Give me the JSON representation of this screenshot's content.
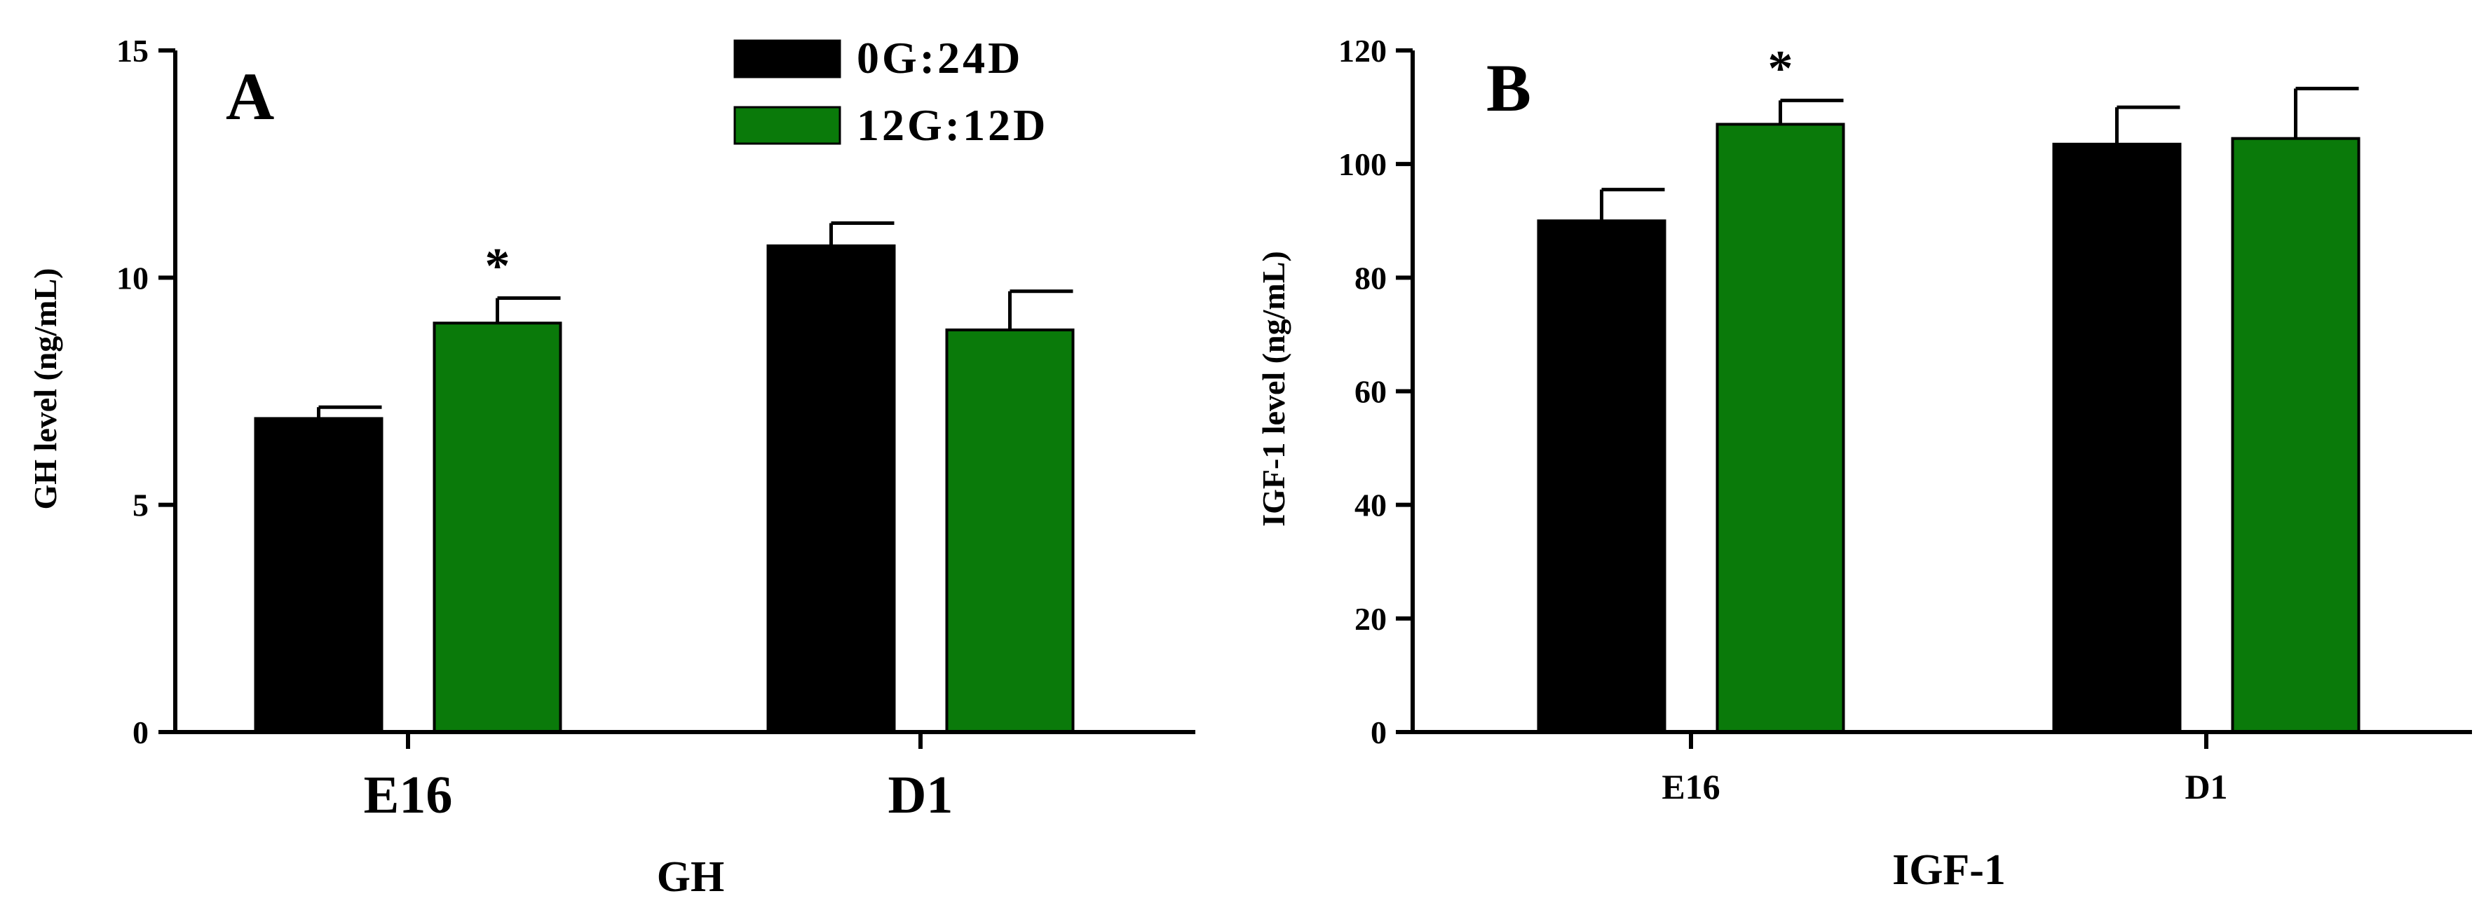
{
  "colors": {
    "0G:24D": "#000000",
    "12G:12D": "#0a7a0a"
  },
  "legend": {
    "position": "top-center of panel A",
    "entries": [
      {
        "name": "0G:24D",
        "color": "#000000"
      },
      {
        "name": "12G:12D",
        "color": "#0a7a0a"
      }
    ]
  },
  "chart_data": [
    {
      "type": "bar",
      "panel_label": "A",
      "title": "",
      "xlabel": "GH",
      "ylabel": "GH level (ng/mL)",
      "categories": [
        "E16",
        "D1"
      ],
      "ylim": [
        0,
        15
      ],
      "yticks": [
        0,
        5,
        10,
        15
      ],
      "grid": false,
      "series": [
        {
          "name": "0G:24D",
          "values": [
            6.9,
            10.7
          ],
          "errors": [
            0.25,
            0.5
          ]
        },
        {
          "name": "12G:12D",
          "values": [
            9.0,
            8.85
          ],
          "errors": [
            0.55,
            0.85
          ]
        }
      ],
      "annotations": [
        {
          "text": "*",
          "category": "E16",
          "series": "12G:12D"
        }
      ]
    },
    {
      "type": "bar",
      "panel_label": "B",
      "title": "",
      "xlabel": "IGF-1",
      "ylabel": "IGF-1 level (ng/mL)",
      "categories": [
        "E16",
        "D1"
      ],
      "ylim": [
        0,
        120
      ],
      "yticks": [
        0,
        20,
        40,
        60,
        80,
        100,
        120
      ],
      "grid": false,
      "series": [
        {
          "name": "0G:24D",
          "values": [
            90,
            103.5
          ],
          "errors": [
            5.5,
            6.5
          ]
        },
        {
          "name": "12G:12D",
          "values": [
            107,
            104.5
          ],
          "errors": [
            4.2,
            8.8
          ]
        }
      ],
      "annotations": [
        {
          "text": "*",
          "category": "E16",
          "series": "12G:12D"
        }
      ]
    }
  ]
}
